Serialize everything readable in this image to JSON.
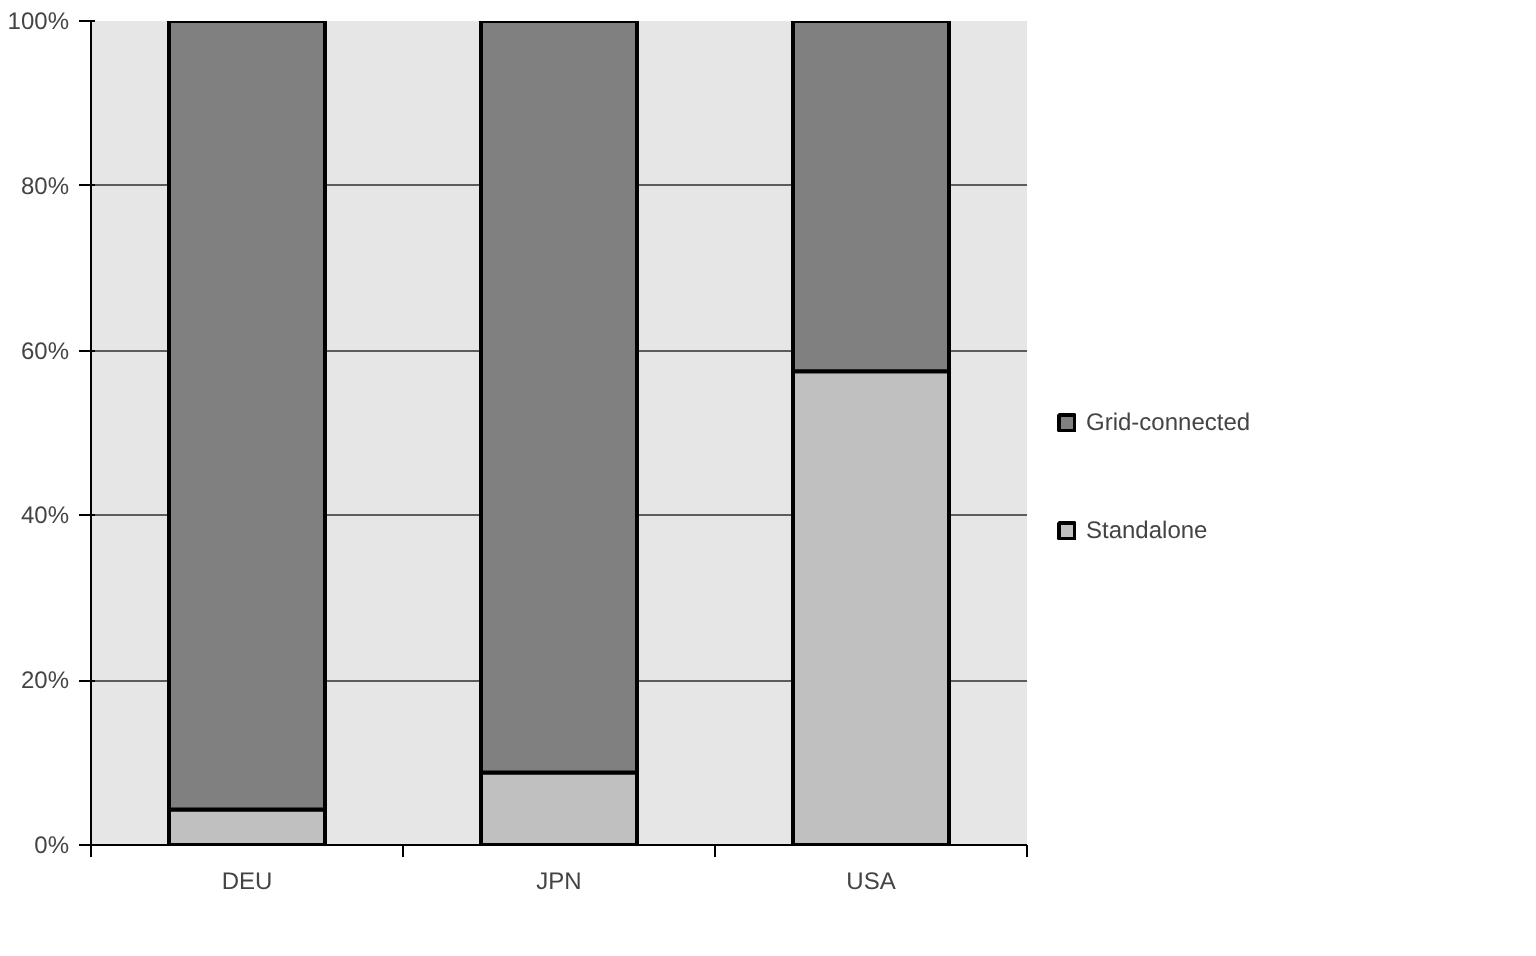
{
  "chart_data": {
    "type": "bar",
    "stacked": true,
    "categories": [
      "DEU",
      "JPN",
      "USA"
    ],
    "series": [
      {
        "name": "Standalone",
        "color": "#c0c0c0",
        "values": [
          4.3,
          8.8,
          57.5
        ]
      },
      {
        "name": "Grid-connected",
        "color": "#808080",
        "values": [
          95.7,
          91.2,
          42.5
        ]
      }
    ],
    "ylim": [
      0,
      100
    ],
    "yticks": [
      {
        "value": 0,
        "label": "0%"
      },
      {
        "value": 20,
        "label": "20%"
      },
      {
        "value": 40,
        "label": "40%"
      },
      {
        "value": 60,
        "label": "60%"
      },
      {
        "value": 80,
        "label": "80%"
      },
      {
        "value": 100,
        "label": "100%"
      }
    ],
    "grid": "y",
    "legend": "right"
  }
}
